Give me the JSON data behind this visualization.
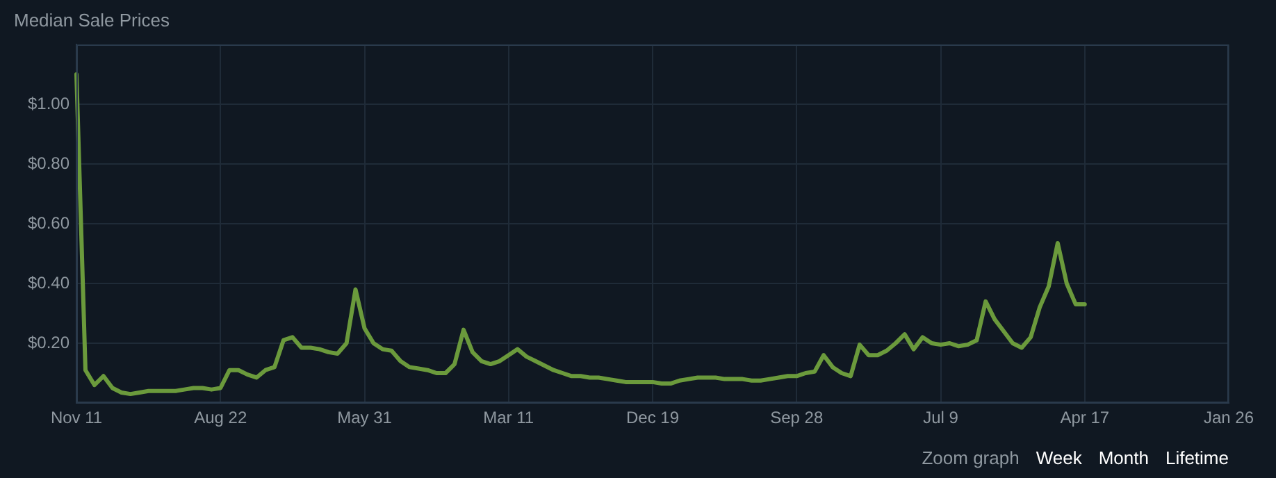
{
  "chart_data": {
    "type": "line",
    "title": "Median Sale Prices",
    "categories": [
      "Nov 11",
      null,
      null,
      null,
      null,
      null,
      null,
      null,
      null,
      null,
      null,
      null,
      null,
      null,
      null,
      null,
      "Aug 22",
      null,
      null,
      null,
      null,
      null,
      null,
      null,
      null,
      null,
      null,
      null,
      null,
      null,
      null,
      null,
      "May 31",
      null,
      null,
      null,
      null,
      null,
      null,
      null,
      null,
      null,
      null,
      null,
      null,
      null,
      null,
      null,
      "Mar 11",
      null,
      null,
      null,
      null,
      null,
      null,
      null,
      null,
      null,
      null,
      null,
      null,
      null,
      null,
      null,
      "Dec 19",
      null,
      null,
      null,
      null,
      null,
      null,
      null,
      null,
      null,
      null,
      null,
      null,
      null,
      null,
      null,
      "Sep 28",
      null,
      null,
      null,
      null,
      null,
      null,
      null,
      null,
      null,
      null,
      null,
      null,
      null,
      null,
      null,
      "Jul 9",
      null,
      null,
      null,
      null,
      null,
      null,
      null,
      null,
      null,
      null,
      null,
      null,
      null,
      null,
      null,
      "Apr 17",
      null,
      null,
      null,
      null,
      null,
      null,
      null,
      null,
      null,
      null,
      null,
      null,
      null,
      null,
      null,
      "Jan 26"
    ],
    "series": [
      {
        "color": "#6b9a3c",
        "values": [
          1.1,
          0.11,
          0.06,
          0.09,
          0.05,
          0.035,
          0.03,
          0.035,
          0.04,
          0.04,
          0.04,
          0.04,
          0.045,
          0.05,
          0.05,
          0.045,
          0.05,
          0.11,
          0.11,
          0.095,
          0.085,
          0.11,
          0.12,
          0.21,
          0.22,
          0.185,
          0.185,
          0.18,
          0.17,
          0.165,
          0.2,
          0.38,
          0.25,
          0.2,
          0.18,
          0.175,
          0.14,
          0.12,
          0.115,
          0.11,
          0.1,
          0.1,
          0.13,
          0.245,
          0.17,
          0.14,
          0.13,
          0.14,
          0.16,
          0.18,
          0.155,
          0.14,
          0.125,
          0.11,
          0.1,
          0.09,
          0.09,
          0.085,
          0.085,
          0.08,
          0.075,
          0.07,
          0.07,
          0.07,
          0.07,
          0.065,
          0.065,
          0.075,
          0.08,
          0.085,
          0.085,
          0.085,
          0.08,
          0.08,
          0.08,
          0.075,
          0.075,
          0.08,
          0.085,
          0.09,
          0.09,
          0.1,
          0.105,
          0.16,
          0.12,
          0.1,
          0.09,
          0.195,
          0.16,
          0.16,
          0.175,
          0.2,
          0.23,
          0.18,
          0.22,
          0.2,
          0.195,
          0.2,
          0.19,
          0.195,
          0.21,
          0.34,
          0.28,
          0.24,
          0.2,
          0.185,
          0.22,
          0.32,
          0.39,
          0.535,
          0.4,
          0.33,
          0.33,
          null,
          null,
          null,
          null,
          null,
          null,
          null,
          null,
          null,
          null,
          null,
          null,
          null,
          null,
          null,
          null
        ]
      }
    ],
    "ylim": [
      0,
      1.2
    ],
    "yticks": [
      {
        "value": 0.2,
        "label": "$0.20"
      },
      {
        "value": 0.4,
        "label": "$0.40"
      },
      {
        "value": 0.6,
        "label": "$0.60"
      },
      {
        "value": 0.8,
        "label": "$0.80"
      },
      {
        "value": 1.0,
        "label": "$1.00"
      }
    ],
    "grid": true,
    "legend": false,
    "marker": "none",
    "line_style": "solid",
    "annotations": [
      "Zoom graph",
      "Week",
      "Month",
      "Lifetime"
    ]
  }
}
